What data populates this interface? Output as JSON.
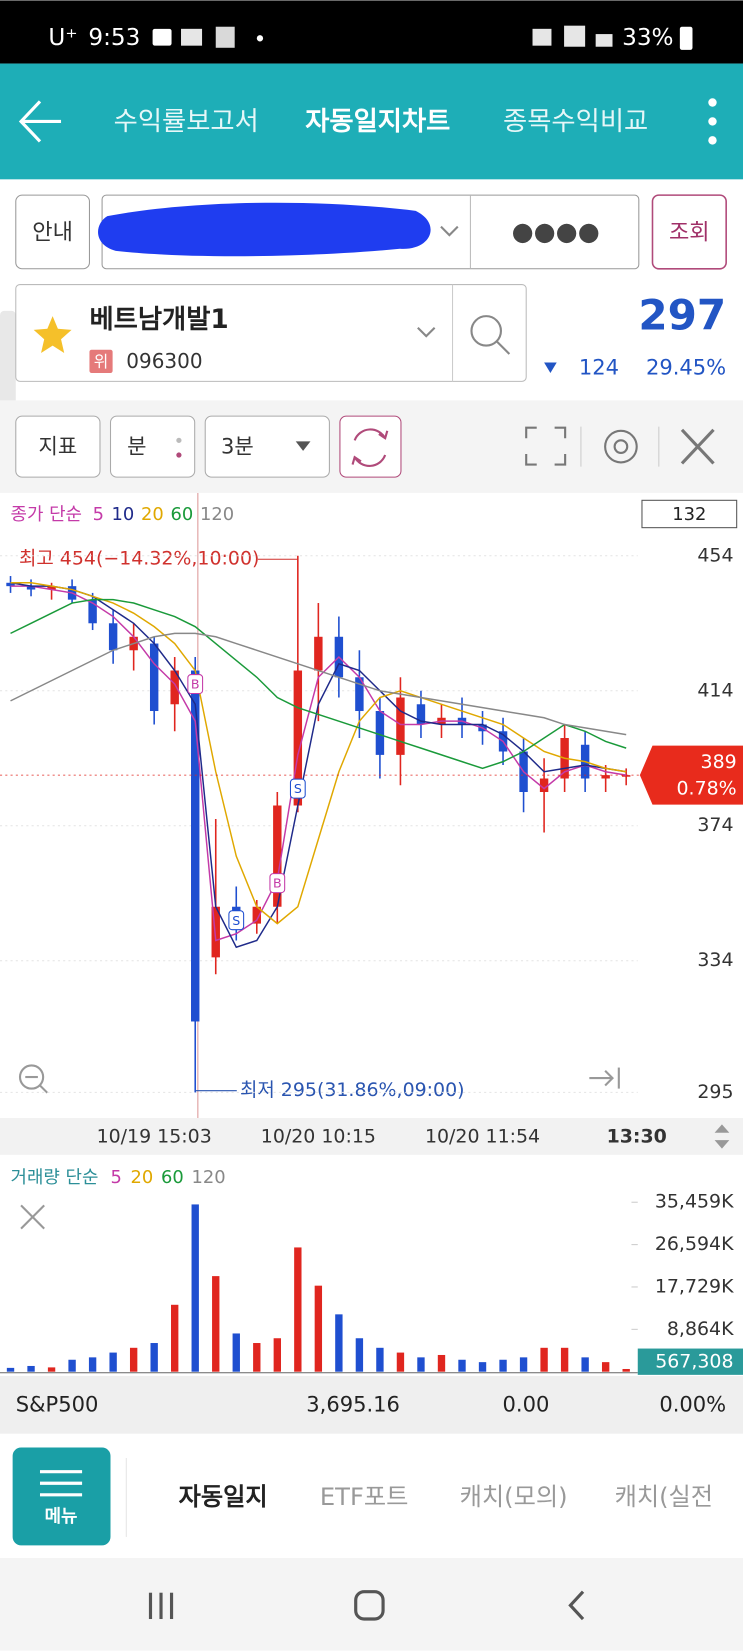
{
  "status_bar": {
    "carrier": "U⁺",
    "time": "9:53",
    "battery": "33%"
  },
  "header": {
    "tabs": [
      "수익률보고서",
      "자동일지차트",
      "종목수익비교"
    ]
  },
  "search": {
    "info_button": "안내",
    "password": "●●●●",
    "query_button": "조회"
  },
  "stock": {
    "name": "베트남개발1",
    "badge": "위",
    "code": "096300",
    "price": 297,
    "change": 124,
    "change_rate": "29.45%"
  },
  "toolbar": {
    "indicator": "지표",
    "unit": "분",
    "interval": "3분"
  },
  "chart_data": [
    {
      "type": "candlestick",
      "legend_title": "종가 단순",
      "counter": 132,
      "categories": [
        null,
        null,
        null,
        null,
        null,
        null,
        null,
        "10/19 15:03",
        null,
        null,
        null,
        null,
        null,
        null,
        null,
        "10/20 10:15",
        null,
        null,
        null,
        null,
        null,
        null,
        null,
        "10/20 11:54",
        null,
        null,
        null,
        null,
        null,
        null,
        "13:30"
      ],
      "open": [
        446,
        445,
        444,
        445,
        441,
        434,
        426,
        428,
        410,
        420,
        335,
        350,
        345,
        350,
        380,
        420,
        430,
        418,
        408,
        395,
        410,
        404,
        406,
        404,
        402,
        396,
        384,
        388,
        398,
        388,
        389
      ],
      "high": [
        448,
        447,
        446,
        447,
        443,
        438,
        434,
        430,
        424,
        424,
        376,
        356,
        352,
        384,
        454,
        440,
        436,
        426,
        412,
        418,
        414,
        410,
        412,
        408,
        406,
        400,
        394,
        404,
        402,
        392,
        391
      ],
      "low": [
        443,
        442,
        441,
        440,
        432,
        422,
        420,
        404,
        402,
        295,
        330,
        340,
        342,
        345,
        378,
        405,
        412,
        400,
        388,
        386,
        400,
        400,
        400,
        398,
        392,
        378,
        372,
        384,
        384,
        384,
        386
      ],
      "close": [
        445,
        444,
        445,
        441,
        434,
        426,
        430,
        408,
        420,
        316,
        350,
        345,
        350,
        380,
        420,
        430,
        418,
        408,
        395,
        412,
        404,
        406,
        404,
        402,
        396,
        384,
        388,
        400,
        388,
        389,
        389
      ],
      "up_color": "#e0261f",
      "down_color": "#1f4fd0",
      "ylim": [
        288,
        472
      ],
      "yticks": [
        454,
        414,
        374,
        334,
        295
      ],
      "grid": true,
      "moving_averages": [
        {
          "name": "5",
          "color": "#c43aa8",
          "values": [
            445,
            445,
            444,
            443,
            440,
            436,
            430,
            422,
            416,
            405,
            340,
            342,
            346,
            358,
            395,
            418,
            424,
            418,
            408,
            404,
            404,
            405,
            405,
            403,
            399,
            390,
            385,
            390,
            392,
            390,
            389
          ]
        },
        {
          "name": "10",
          "color": "#1f2a8a",
          "values": [
            446,
            445,
            445,
            444,
            442,
            438,
            434,
            428,
            420,
            410,
            350,
            338,
            340,
            350,
            380,
            410,
            422,
            420,
            414,
            408,
            405,
            404,
            404,
            404,
            401,
            396,
            390,
            391,
            392,
            391,
            390
          ]
        },
        {
          "name": "20",
          "color": "#e0a800",
          "values": [
            446,
            446,
            445,
            444,
            442,
            440,
            437,
            433,
            428,
            420,
            390,
            365,
            350,
            345,
            350,
            370,
            390,
            405,
            412,
            414,
            412,
            410,
            408,
            406,
            404,
            400,
            396,
            394,
            393,
            391,
            390
          ]
        },
        {
          "name": "60",
          "color": "#1a9a3a",
          "values": [
            431,
            434,
            437,
            440,
            441,
            441,
            440,
            438,
            436,
            433,
            428,
            423,
            418,
            412,
            409,
            407,
            405,
            403,
            401,
            399,
            397,
            395,
            393,
            391,
            393,
            396,
            400,
            404,
            402,
            399,
            397
          ]
        },
        {
          "name": "120",
          "color": "#888888",
          "values": [
            411,
            414,
            417,
            420,
            423,
            426,
            428,
            430,
            431,
            431,
            430,
            428,
            426,
            424,
            422,
            420,
            418,
            416,
            414,
            413,
            412,
            411,
            410,
            409,
            408,
            407,
            406,
            404,
            403,
            402,
            401
          ]
        }
      ],
      "signals": [
        {
          "label": "B",
          "index": 9,
          "price": 416
        },
        {
          "label": "S",
          "index": 11,
          "price": 346
        },
        {
          "label": "B",
          "index": 13,
          "price": 357
        },
        {
          "label": "S",
          "index": 14,
          "price": 385
        }
      ],
      "high_note": "최고 454(−14.32%,10:00)",
      "low_note": "최저 295(31.86%,09:00)",
      "last_change_rate": "0.78%"
    },
    {
      "type": "bar",
      "legend_title": "거래량 단순",
      "values": [
        800,
        1200,
        900,
        2500,
        3000,
        4000,
        5000,
        6000,
        14000,
        35000,
        20000,
        8000,
        6000,
        7000,
        26000,
        18000,
        12000,
        7000,
        5000,
        4000,
        3000,
        3500,
        2500,
        2000,
        2500,
        3000,
        5000,
        5000,
        3000,
        2000,
        567.308
      ],
      "ylim": [
        0,
        43600
      ],
      "yticks": [
        {
          "value": 35459,
          "label": "35,459K"
        },
        {
          "value": 26594,
          "label": "26,594K"
        },
        {
          "value": 17729,
          "label": "17,729K"
        },
        {
          "value": 8864,
          "label": "8,864K"
        }
      ],
      "moving_averages": [
        {
          "name": "5",
          "color": "#c43aa8"
        },
        {
          "name": "20",
          "color": "#e0a800"
        },
        {
          "name": "60",
          "color": "#1a9a3a"
        },
        {
          "name": "120",
          "color": "#888888"
        }
      ],
      "last_volume_label": "567,308"
    }
  ],
  "index_bar": {
    "name": "S&P500",
    "value": "3,695.16",
    "change": "0.00",
    "rate": "0.00%"
  },
  "bottom_menu": {
    "menu": "메뉴",
    "tabs": [
      "자동일지",
      "ETF포트",
      "캐치(모의)",
      "캐치(실전"
    ]
  }
}
